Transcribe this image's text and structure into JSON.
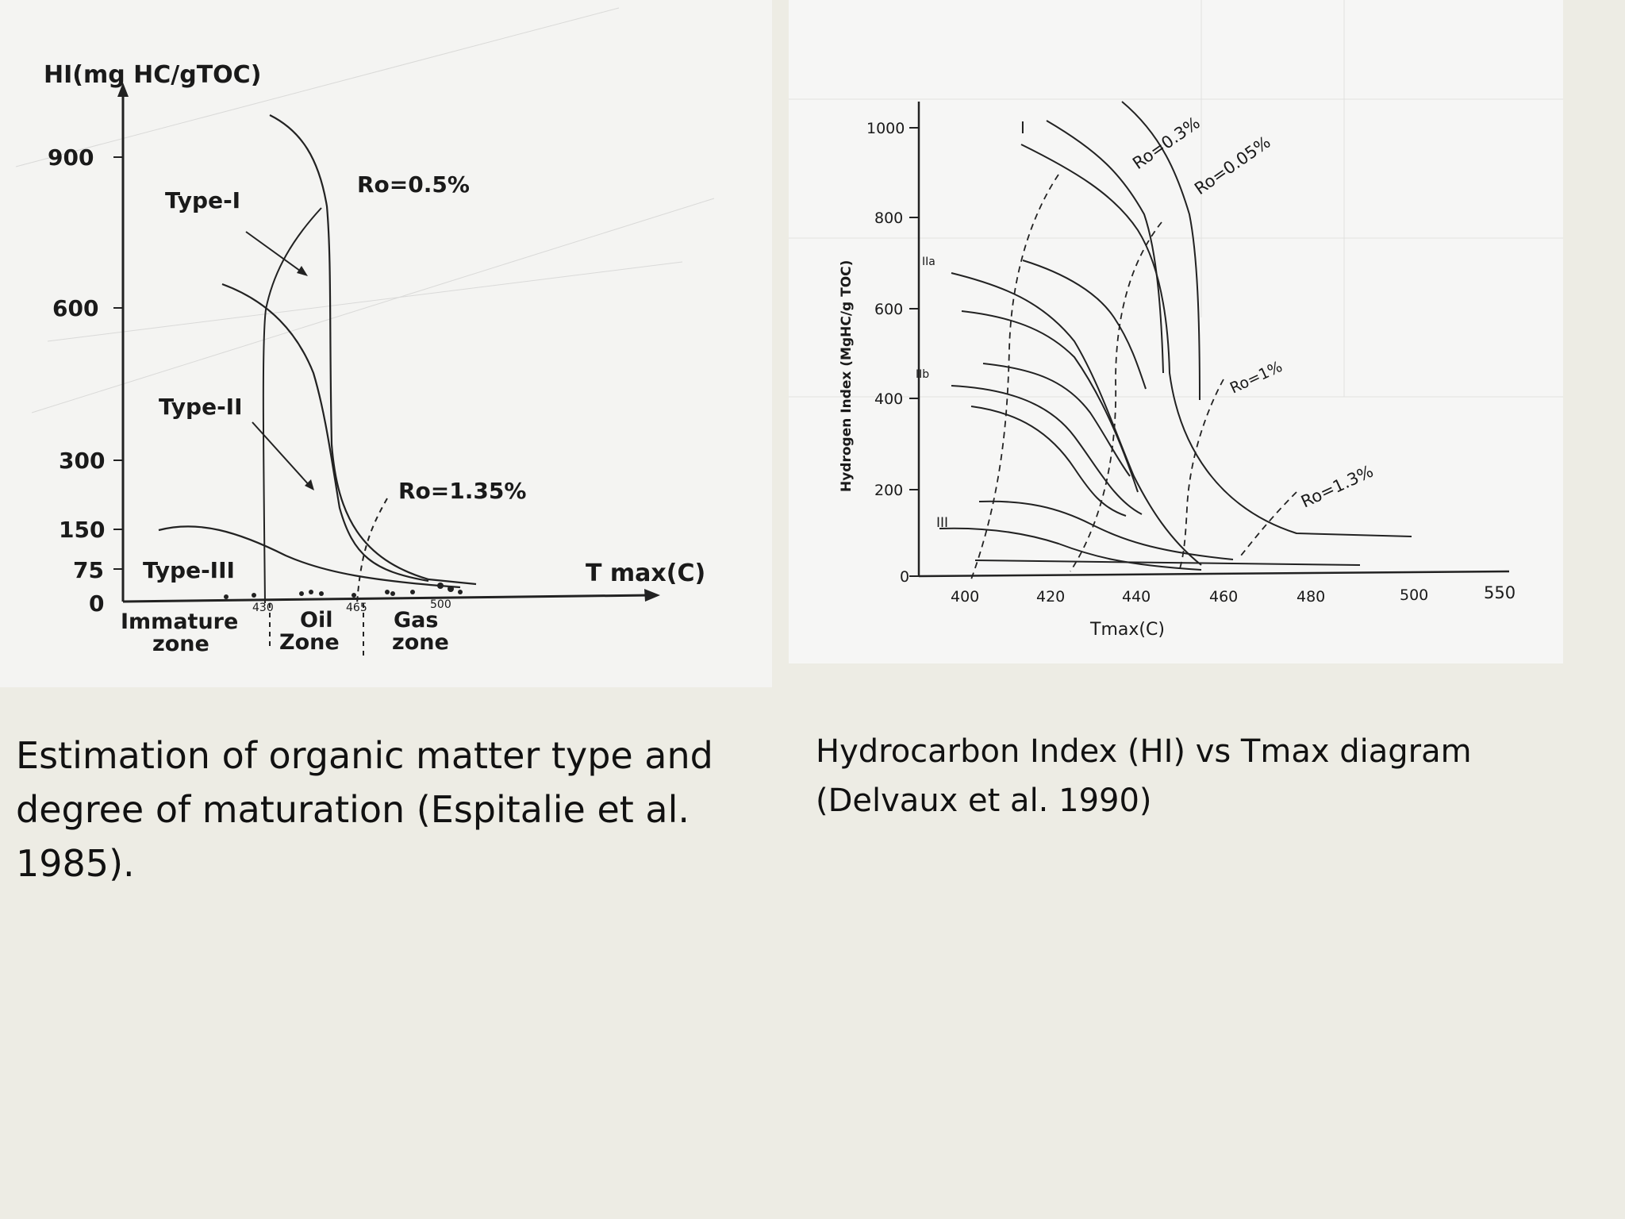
{
  "chart_data": [
    {
      "type": "line",
      "title": "",
      "ylabel": "HI(mg HC/gTOC)",
      "xlabel": "T max(C)",
      "y_ticks": [
        "900",
        "600",
        "300",
        "150",
        "75",
        "0"
      ],
      "x_ticks": [
        "430",
        "465",
        "500"
      ],
      "curve_labels": [
        "Type-I",
        "Type-II",
        "Type-III"
      ],
      "isoline_labels": [
        "Ro=0.5%",
        "Ro=1.35%"
      ],
      "zone_labels": [
        {
          "line1": "Immature",
          "line2": "zone"
        },
        {
          "line1": "Oil",
          "line2": "Zone"
        },
        {
          "line1": "Gas",
          "line2": "zone"
        }
      ],
      "ylim": [
        0,
        1000
      ],
      "series": [
        {
          "name": "Type-I",
          "x": [
            438,
            445,
            452,
            456,
            458,
            462,
            470,
            485,
            500
          ],
          "y": [
            960,
            900,
            800,
            650,
            500,
            300,
            150,
            50,
            20
          ]
        },
        {
          "name": "Type-II",
          "x": [
            420,
            432,
            440,
            445,
            450,
            455,
            470,
            490,
            505
          ],
          "y": [
            630,
            580,
            500,
            420,
            300,
            200,
            100,
            40,
            20
          ]
        },
        {
          "name": "Type-III",
          "x": [
            410,
            420,
            430,
            440,
            450,
            465,
            480,
            500
          ],
          "y": [
            145,
            150,
            140,
            115,
            85,
            50,
            30,
            15
          ]
        }
      ]
    },
    {
      "type": "line",
      "title": "",
      "ylabel": "Hydrogen Index   (MgHC/g TOC)",
      "xlabel": "Tmax(C)",
      "y_ticks": [
        0,
        200,
        400,
        600,
        800,
        1000
      ],
      "x_ticks": [
        "400",
        "420",
        "440",
        "460",
        "480",
        "500",
        "550"
      ],
      "curve_labels": [
        "I",
        "IIa",
        "IIb",
        "III"
      ],
      "isoline_labels": [
        "Ro=0.3%",
        "Ro=0.05%",
        "Ro=1%",
        "Ro=1.3%"
      ],
      "ylim": [
        0,
        1050
      ],
      "series": [
        {
          "name": "I",
          "x": [
            420,
            430,
            440,
            446,
            450,
            452,
            453,
            455,
            458,
            465,
            480,
            500,
            540
          ],
          "y": [
            960,
            880,
            780,
            680,
            550,
            420,
            320,
            200,
            150,
            120,
            100,
            90,
            85
          ]
        },
        {
          "name": "IIa",
          "x": [
            397,
            410,
            420,
            430,
            440,
            445,
            450,
            455,
            460,
            470,
            480
          ],
          "y": [
            690,
            660,
            620,
            560,
            460,
            360,
            250,
            160,
            110,
            70,
            50
          ]
        },
        {
          "name": "IIb",
          "x": [
            397,
            410,
            420,
            430,
            440,
            445,
            450,
            460,
            470,
            480
          ],
          "y": [
            430,
            415,
            380,
            330,
            260,
            200,
            150,
            90,
            60,
            40
          ]
        },
        {
          "name": "III",
          "x": [
            397,
            410,
            420,
            430,
            440,
            450,
            460,
            470,
            480
          ],
          "y": [
            110,
            105,
            95,
            80,
            60,
            45,
            35,
            30,
            28
          ]
        }
      ]
    }
  ],
  "captions": {
    "left": [
      "Estimation of organic matter type and",
      "degree of maturation (Espitalie et al.",
      "1985)."
    ],
    "right": [
      "Hydrocarbon Index (HI) vs Tmax diagram",
      "(Delvaux et al. 1990)"
    ]
  }
}
